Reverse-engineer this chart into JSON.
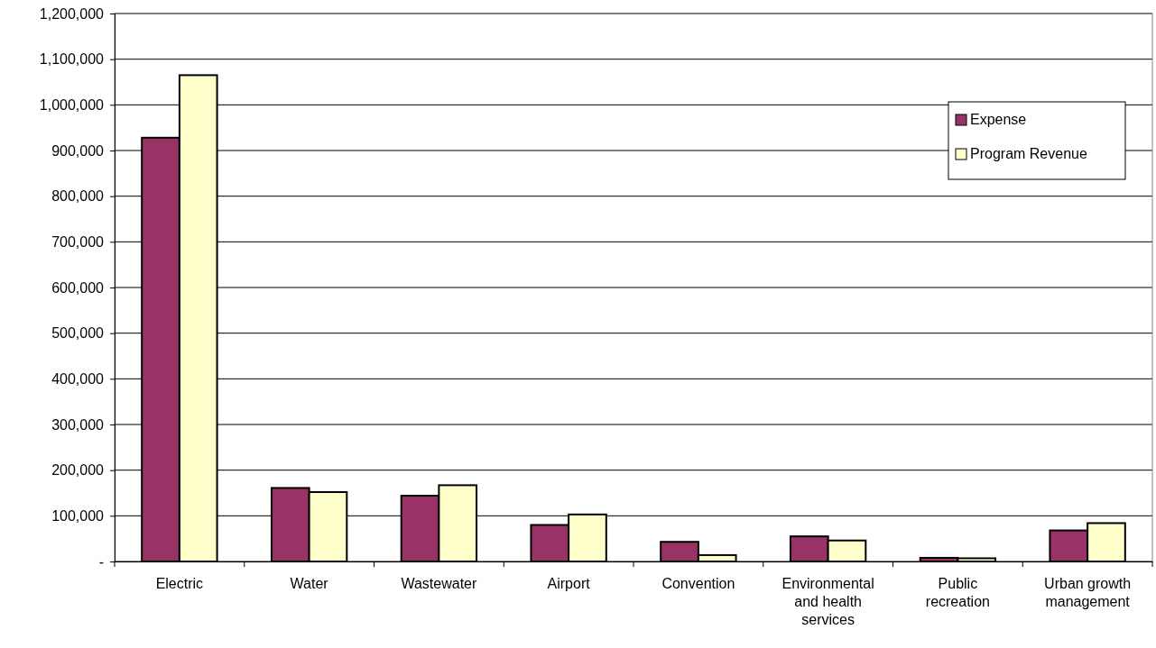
{
  "chart_data": {
    "type": "bar",
    "categories": [
      "Electric",
      "Water",
      "Wastewater",
      "Airport",
      "Convention",
      "Environmental and health services",
      "Public recreation",
      "Urban growth management"
    ],
    "series": [
      {
        "name": "Expense",
        "color": "#993366",
        "values": [
          928000,
          161000,
          144000,
          80000,
          43000,
          55000,
          8000,
          68000
        ]
      },
      {
        "name": "Program Revenue",
        "color": "#ffffcc",
        "values": [
          1065000,
          152000,
          167000,
          103000,
          14000,
          46000,
          7000,
          84000
        ]
      }
    ],
    "ylim": [
      0,
      1200000
    ],
    "yticks": [
      {
        "value": 0,
        "label": "-"
      },
      {
        "value": 100000,
        "label": "100,000"
      },
      {
        "value": 200000,
        "label": "200,000"
      },
      {
        "value": 300000,
        "label": "300,000"
      },
      {
        "value": 400000,
        "label": "400,000"
      },
      {
        "value": 500000,
        "label": "500,000"
      },
      {
        "value": 600000,
        "label": "600,000"
      },
      {
        "value": 700000,
        "label": "700,000"
      },
      {
        "value": 800000,
        "label": "800,000"
      },
      {
        "value": 900000,
        "label": "900,000"
      },
      {
        "value": 1000000,
        "label": "1,000,000"
      },
      {
        "value": 1100000,
        "label": "1,100,000"
      },
      {
        "value": 1200000,
        "label": "1,200,000"
      }
    ],
    "grid": "y",
    "legend": "top right"
  }
}
